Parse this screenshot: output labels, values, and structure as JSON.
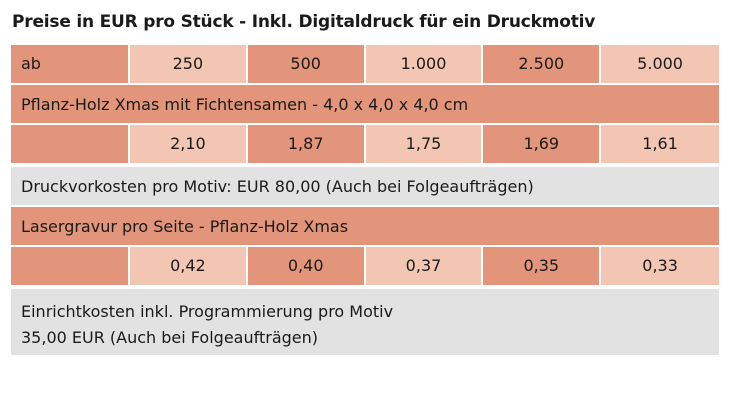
{
  "title": "Preise in EUR pro Stück - Inkl. Digitaldruck für ein Druckmotiv",
  "header": {
    "label": "ab",
    "quantities": [
      "250",
      "500",
      "1.000",
      "2.500",
      "5.000"
    ]
  },
  "product1": {
    "name": "Pflanz-Holz Xmas mit Fichtensamen - 4,0 x 4,0 x 4,0 cm",
    "prices": [
      "2,10",
      "1,87",
      "1,75",
      "1,69",
      "1,61"
    ]
  },
  "setup_cost": "Druckvorkosten pro Motiv: EUR 80,00 (Auch bei Folgeaufträgen)",
  "engraving": {
    "name": "Lasergravur pro Seite - Pflanz-Holz Xmas",
    "prices": [
      "0,42",
      "0,40",
      "0,37",
      "0,35",
      "0,33"
    ]
  },
  "setup_note": {
    "line1": "Einrichtkosten inkl. Programmierung pro Motiv",
    "line2": "35,00 EUR (Auch bei Folgeaufträgen)"
  },
  "colors": {
    "dark": "#e2957a",
    "light": "#f3c6b4",
    "gray": "#e2e2e2"
  }
}
